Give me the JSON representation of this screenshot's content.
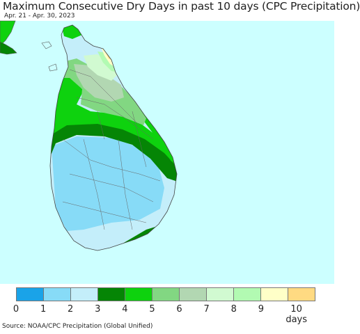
{
  "header": {
    "title": "Maximum Consecutive Dry Days in past 10 days (CPC Precipitation)",
    "date_range": "Apr. 21 - Apr. 30, 2023"
  },
  "map": {
    "ocean_color": "#ccffff",
    "land_border_color": "#555555"
  },
  "legend": {
    "items": [
      {
        "label": "0",
        "color": "#1aa3e8"
      },
      {
        "label": "1",
        "color": "#87dbf7"
      },
      {
        "label": "2",
        "color": "#c4eefa"
      },
      {
        "label": "3",
        "color": "#058505"
      },
      {
        "label": "4",
        "color": "#0ed20e"
      },
      {
        "label": "5",
        "color": "#82d782"
      },
      {
        "label": "6",
        "color": "#b2d7b2"
      },
      {
        "label": "7",
        "color": "#d1fad1"
      },
      {
        "label": "8",
        "color": "#b2fab2"
      },
      {
        "label": "9",
        "color": "#ffffc8"
      },
      {
        "label": "10 days",
        "color": "#ffda82"
      }
    ]
  },
  "footer": {
    "source": "Source: NOAA/CPC Precipitation (Global Unified)"
  }
}
